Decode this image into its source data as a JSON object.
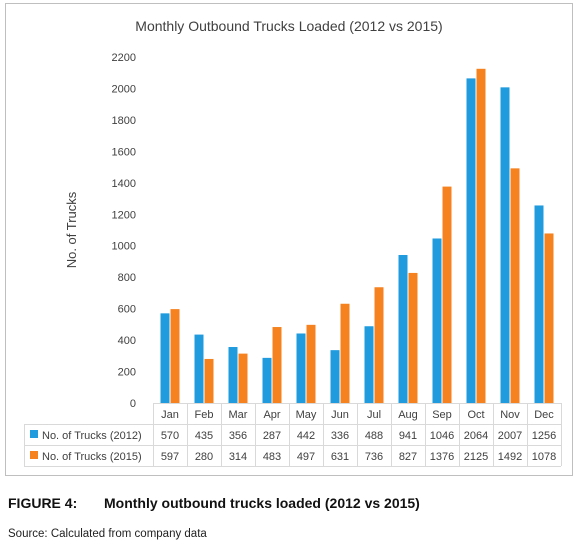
{
  "caption": {
    "label": "FIGURE 4:",
    "text": "Monthly outbound trucks loaded (2012 vs 2015)"
  },
  "source": "Source: Calculated from company data",
  "colors": {
    "series_2012": "#1f9bde",
    "series_2015": "#f5821f",
    "grid": "#d9d9d9",
    "text": "#404040"
  },
  "chart_data": {
    "type": "bar",
    "title": "Monthly Outbound Trucks Loaded (2012 vs 2015)",
    "xlabel": "",
    "ylabel": "No. of Trucks",
    "ylim": [
      0,
      2200
    ],
    "yticks": [
      "0",
      "200",
      "400",
      "600",
      "800",
      "1000",
      "1200",
      "1400",
      "1600",
      "1800",
      "2000",
      "2200"
    ],
    "grid": false,
    "legend": "data-table",
    "categories": [
      "Jan",
      "Feb",
      "Mar",
      "Apr",
      "May",
      "Jun",
      "Jul",
      "Aug",
      "Sep",
      "Oct",
      "Nov",
      "Dec"
    ],
    "series": [
      {
        "name": "No. of Trucks (2012)",
        "color": "#1f9bde",
        "values": [
          570,
          435,
          356,
          287,
          442,
          336,
          488,
          941,
          1046,
          2064,
          2007,
          1256
        ]
      },
      {
        "name": "No. of Trucks (2015)",
        "color": "#f5821f",
        "values": [
          597,
          280,
          314,
          483,
          497,
          631,
          736,
          827,
          1376,
          2125,
          1492,
          1078
        ]
      }
    ]
  }
}
